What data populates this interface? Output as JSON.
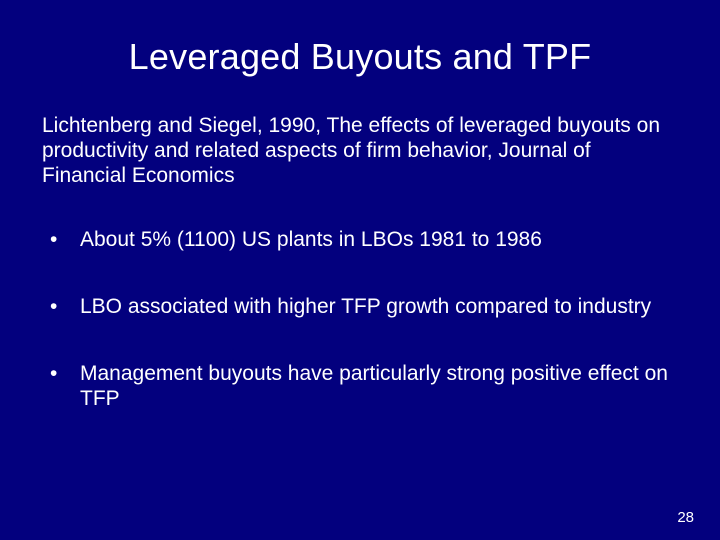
{
  "slide": {
    "background_color": "#03007e",
    "text_color": "#ffffff",
    "title": "Leveraged Buyouts and TPF",
    "title_fontsize": 36,
    "citation": "Lichtenberg and Siegel, 1990, The effects of leveraged buyouts on productivity and related aspects of firm behavior, Journal of Financial Economics",
    "citation_fontsize": 21,
    "bullets": [
      "About 5% (1100) US plants in LBOs  1981 to 1986",
      "LBO associated with higher TFP  growth compared to industry",
      "Management buyouts have particularly strong positive effect on TFP"
    ],
    "bullet_fontsize": 21,
    "page_number": "28",
    "page_number_fontsize": 15
  }
}
